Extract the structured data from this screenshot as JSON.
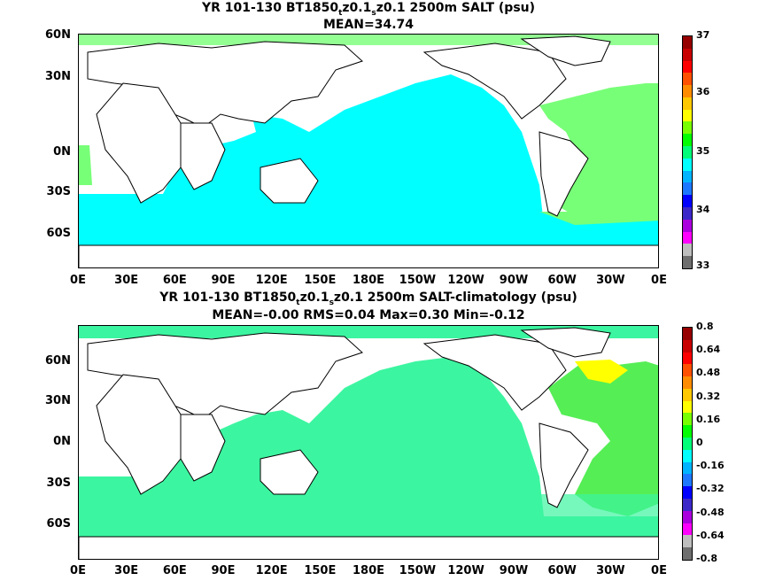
{
  "panel1": {
    "title_pre": "YR 101-130 BT1850",
    "title_sub1": "t",
    "title_mid": "z0.1",
    "title_sub2": "s",
    "title_post": "z0.1 2500m SALT (psu)",
    "stats": "MEAN=34.74",
    "colorbar_labels": [
      "37",
      "36",
      "35",
      "34",
      "33"
    ],
    "colors": [
      "#6e6e6e",
      "#bebebe",
      "#ff00ff",
      "#aa00dd",
      "#3c28c8",
      "#0000ff",
      "#1e78ff",
      "#00b4ff",
      "#00ffff",
      "#00ff78",
      "#00ff00",
      "#78ff00",
      "#ffff00",
      "#ffc800",
      "#ff8c00",
      "#ff5000",
      "#ff0000",
      "#c80000",
      "#960000",
      "#ffffff"
    ]
  },
  "panel2": {
    "title_pre": "YR 101-130 BT1850",
    "title_sub1": "t",
    "title_mid": "z0.1",
    "title_sub2": "s",
    "title_post": "z0.1 2500m SALT-climatology (psu)",
    "stats": "MEAN=-0.00   RMS=0.04   Max=0.30   Min=-0.12",
    "colorbar_labels": [
      "0.8",
      "0.64",
      "0.48",
      "0.32",
      "0.16",
      "0",
      "-0.16",
      "-0.32",
      "-0.48",
      "-0.64",
      "-0.8"
    ]
  },
  "axes": {
    "lat_labels": [
      "60N",
      "30N",
      "0N",
      "30S",
      "60S"
    ],
    "lon_labels": [
      "0E",
      "30E",
      "60E",
      "90E",
      "120E",
      "150E",
      "180E",
      "150W",
      "120W",
      "90W",
      "60W",
      "30W",
      "0E"
    ]
  }
}
